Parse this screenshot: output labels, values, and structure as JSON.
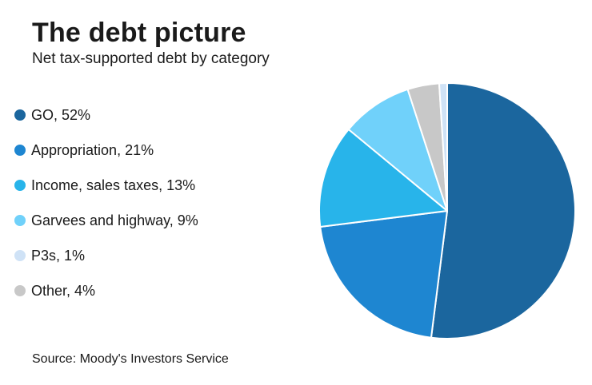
{
  "chart_data": {
    "type": "pie",
    "title": "The debt picture",
    "subtitle": "Net tax-supported debt by category",
    "source": "Source: Moody's Investors Service",
    "legend_position": "left",
    "slices": [
      {
        "key": "go",
        "label": "GO, 52%",
        "value": 52,
        "color": "#1b669e"
      },
      {
        "key": "appropriation",
        "label": "Appropriation, 21%",
        "value": 21,
        "color": "#1e86d1"
      },
      {
        "key": "income",
        "label": "Income, sales taxes, 13%",
        "value": 13,
        "color": "#28b4ea"
      },
      {
        "key": "garvees",
        "label": "Garvees and highway, 9%",
        "value": 9,
        "color": "#70d1fa"
      },
      {
        "key": "p3s",
        "label": "P3s, 1%",
        "value": 1,
        "color": "#cfe2f6"
      },
      {
        "key": "other",
        "label": "Other, 4%",
        "value": 4,
        "color": "#c8c8c8"
      }
    ],
    "pie_order": [
      "go",
      "appropriation",
      "income",
      "garvees",
      "other",
      "p3s"
    ]
  }
}
